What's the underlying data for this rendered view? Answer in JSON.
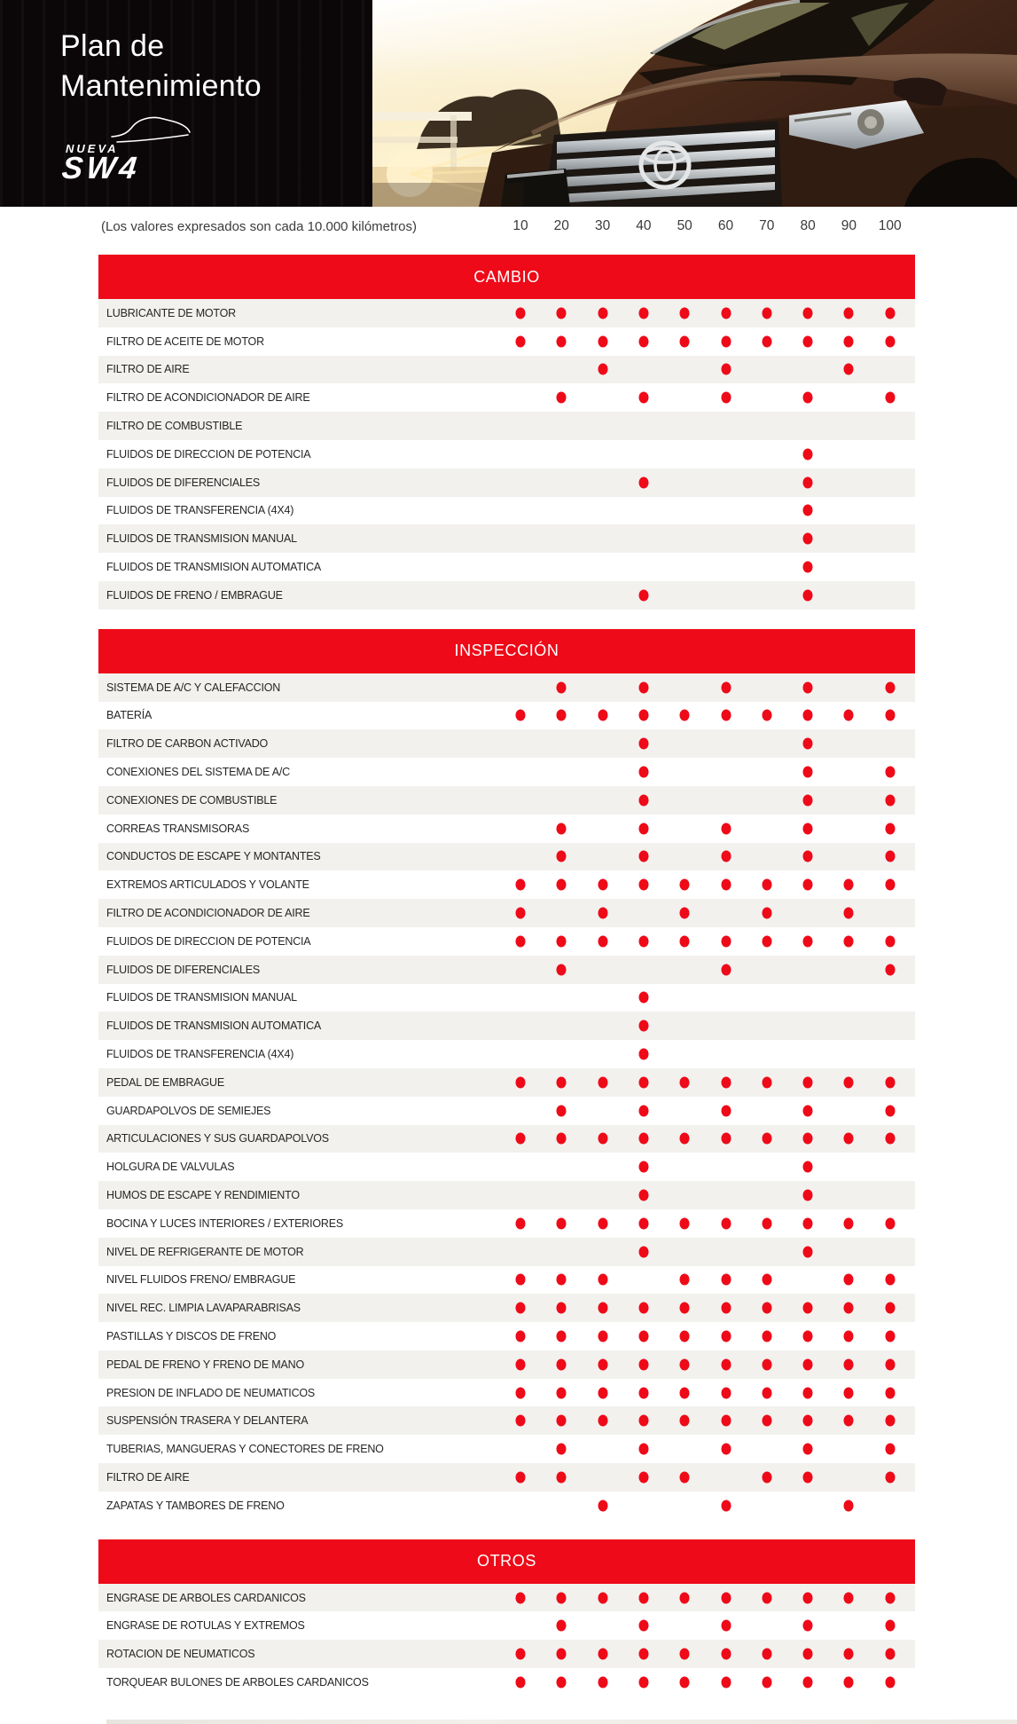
{
  "header": {
    "title_line1": "Plan de",
    "title_line2": "Mantenimiento",
    "logo_top": "NUEVA",
    "logo_main": "SW4"
  },
  "table": {
    "note": "(Los valores expresados son cada 10.000 kilómetros)",
    "columns": [
      "10",
      "20",
      "30",
      "40",
      "50",
      "60",
      "70",
      "80",
      "90",
      "100"
    ],
    "sections": [
      {
        "title": "CAMBIO",
        "rows": [
          {
            "label": "LUBRICANTE DE MOTOR",
            "marks": [
              1,
              1,
              1,
              1,
              1,
              1,
              1,
              1,
              1,
              1
            ]
          },
          {
            "label": "FILTRO DE ACEITE DE MOTOR",
            "marks": [
              1,
              1,
              1,
              1,
              1,
              1,
              1,
              1,
              1,
              1
            ]
          },
          {
            "label": "FILTRO DE AIRE",
            "marks": [
              0,
              0,
              1,
              0,
              0,
              1,
              0,
              0,
              1,
              0
            ]
          },
          {
            "label": "FILTRO DE ACONDICIONADOR DE AIRE",
            "marks": [
              0,
              1,
              0,
              1,
              0,
              1,
              0,
              1,
              0,
              1
            ]
          },
          {
            "label": "FILTRO DE COMBUSTIBLE",
            "marks": [
              0,
              0,
              0,
              0,
              0,
              0,
              0,
              0,
              0,
              0
            ]
          },
          {
            "label": "FLUIDOS DE DIRECCION DE POTENCIA",
            "marks": [
              0,
              0,
              0,
              0,
              0,
              0,
              0,
              1,
              0,
              0
            ]
          },
          {
            "label": "FLUIDOS DE DIFERENCIALES",
            "marks": [
              0,
              0,
              0,
              1,
              0,
              0,
              0,
              1,
              0,
              0
            ]
          },
          {
            "label": "FLUIDOS DE TRANSFERENCIA (4X4)",
            "marks": [
              0,
              0,
              0,
              0,
              0,
              0,
              0,
              1,
              0,
              0
            ]
          },
          {
            "label": "FLUIDOS DE TRANSMISION MANUAL",
            "marks": [
              0,
              0,
              0,
              0,
              0,
              0,
              0,
              1,
              0,
              0
            ]
          },
          {
            "label": "FLUIDOS DE TRANSMISION AUTOMATICA",
            "marks": [
              0,
              0,
              0,
              0,
              0,
              0,
              0,
              1,
              0,
              0
            ]
          },
          {
            "label": "FLUIDOS DE FRENO / EMBRAGUE",
            "marks": [
              0,
              0,
              0,
              1,
              0,
              0,
              0,
              1,
              0,
              0
            ]
          }
        ]
      },
      {
        "title": "INSPECCIÓN",
        "rows": [
          {
            "label": "SISTEMA DE A/C Y CALEFACCION",
            "marks": [
              0,
              1,
              0,
              1,
              0,
              1,
              0,
              1,
              0,
              1
            ]
          },
          {
            "label": "BATERÍA",
            "marks": [
              1,
              1,
              1,
              1,
              1,
              1,
              1,
              1,
              1,
              1
            ]
          },
          {
            "label": "FILTRO DE CARBON ACTIVADO",
            "marks": [
              0,
              0,
              0,
              1,
              0,
              0,
              0,
              1,
              0,
              0
            ]
          },
          {
            "label": "CONEXIONES DEL SISTEMA DE A/C",
            "marks": [
              0,
              0,
              0,
              1,
              0,
              0,
              0,
              1,
              0,
              1
            ]
          },
          {
            "label": "CONEXIONES DE COMBUSTIBLE",
            "marks": [
              0,
              0,
              0,
              1,
              0,
              0,
              0,
              1,
              0,
              1
            ]
          },
          {
            "label": "CORREAS TRANSMISORAS",
            "marks": [
              0,
              1,
              0,
              1,
              0,
              1,
              0,
              1,
              0,
              1
            ]
          },
          {
            "label": "CONDUCTOS DE ESCAPE Y MONTANTES",
            "marks": [
              0,
              1,
              0,
              1,
              0,
              1,
              0,
              1,
              0,
              1
            ]
          },
          {
            "label": "EXTREMOS ARTICULADOS Y VOLANTE",
            "marks": [
              1,
              1,
              1,
              1,
              1,
              1,
              1,
              1,
              1,
              1
            ]
          },
          {
            "label": "FILTRO DE ACONDICIONADOR DE AIRE",
            "marks": [
              1,
              0,
              1,
              0,
              1,
              0,
              1,
              0,
              1,
              0
            ]
          },
          {
            "label": "FLUIDOS DE DIRECCION DE POTENCIA",
            "marks": [
              1,
              1,
              1,
              1,
              1,
              1,
              1,
              1,
              1,
              1
            ]
          },
          {
            "label": "FLUIDOS DE DIFERENCIALES",
            "marks": [
              0,
              1,
              0,
              0,
              0,
              1,
              0,
              0,
              0,
              1
            ]
          },
          {
            "label": "FLUIDOS DE TRANSMISION MANUAL",
            "marks": [
              0,
              0,
              0,
              1,
              0,
              0,
              0,
              0,
              0,
              0
            ]
          },
          {
            "label": "FLUIDOS DE TRANSMISION AUTOMATICA",
            "marks": [
              0,
              0,
              0,
              1,
              0,
              0,
              0,
              0,
              0,
              0
            ]
          },
          {
            "label": "FLUIDOS DE TRANSFERENCIA (4X4)",
            "marks": [
              0,
              0,
              0,
              1,
              0,
              0,
              0,
              0,
              0,
              0
            ]
          },
          {
            "label": "PEDAL DE EMBRAGUE",
            "marks": [
              1,
              1,
              1,
              1,
              1,
              1,
              1,
              1,
              1,
              1
            ]
          },
          {
            "label": "GUARDAPOLVOS DE SEMIEJES",
            "marks": [
              0,
              1,
              0,
              1,
              0,
              1,
              0,
              1,
              0,
              1
            ]
          },
          {
            "label": "ARTICULACIONES Y SUS GUARDAPOLVOS",
            "marks": [
              1,
              1,
              1,
              1,
              1,
              1,
              1,
              1,
              1,
              1
            ]
          },
          {
            "label": "HOLGURA DE VALVULAS",
            "marks": [
              0,
              0,
              0,
              1,
              0,
              0,
              0,
              1,
              0,
              0
            ]
          },
          {
            "label": "HUMOS DE ESCAPE Y RENDIMIENTO",
            "marks": [
              0,
              0,
              0,
              1,
              0,
              0,
              0,
              1,
              0,
              0
            ]
          },
          {
            "label": "BOCINA Y LUCES INTERIORES / EXTERIORES",
            "marks": [
              1,
              1,
              1,
              1,
              1,
              1,
              1,
              1,
              1,
              1
            ]
          },
          {
            "label": "NIVEL DE REFRIGERANTE DE MOTOR",
            "marks": [
              0,
              0,
              0,
              1,
              0,
              0,
              0,
              1,
              0,
              0
            ]
          },
          {
            "label": "NIVEL FLUIDOS FRENO/ EMBRAGUE",
            "marks": [
              1,
              1,
              1,
              0,
              1,
              1,
              1,
              0,
              1,
              1
            ]
          },
          {
            "label": "NIVEL REC. LIMPIA LAVAPARABRISAS",
            "marks": [
              1,
              1,
              1,
              1,
              1,
              1,
              1,
              1,
              1,
              1
            ]
          },
          {
            "label": "PASTILLAS Y DISCOS DE FRENO",
            "marks": [
              1,
              1,
              1,
              1,
              1,
              1,
              1,
              1,
              1,
              1
            ]
          },
          {
            "label": "PEDAL DE FRENO Y FRENO DE MANO",
            "marks": [
              1,
              1,
              1,
              1,
              1,
              1,
              1,
              1,
              1,
              1
            ]
          },
          {
            "label": "PRESION DE INFLADO DE NEUMATICOS",
            "marks": [
              1,
              1,
              1,
              1,
              1,
              1,
              1,
              1,
              1,
              1
            ]
          },
          {
            "label": "SUSPENSIÓN TRASERA Y DELANTERA",
            "marks": [
              1,
              1,
              1,
              1,
              1,
              1,
              1,
              1,
              1,
              1
            ]
          },
          {
            "label": "TUBERIAS, MANGUERAS Y CONECTORES DE FRENO",
            "marks": [
              0,
              1,
              0,
              1,
              0,
              1,
              0,
              1,
              0,
              1
            ]
          },
          {
            "label": "FILTRO DE AIRE",
            "marks": [
              1,
              1,
              0,
              1,
              1,
              0,
              1,
              1,
              0,
              1
            ]
          },
          {
            "label": "ZAPATAS Y TAMBORES DE FRENO",
            "marks": [
              0,
              0,
              1,
              0,
              0,
              1,
              0,
              0,
              1,
              0
            ]
          }
        ]
      },
      {
        "title": "OTROS",
        "rows": [
          {
            "label": "ENGRASE DE ARBOLES CARDANICOS",
            "marks": [
              1,
              1,
              1,
              1,
              1,
              1,
              1,
              1,
              1,
              1
            ]
          },
          {
            "label": "ENGRASE DE ROTULAS Y EXTREMOS",
            "marks": [
              0,
              1,
              0,
              1,
              0,
              1,
              0,
              1,
              0,
              1
            ]
          },
          {
            "label": "ROTACION DE NEUMATICOS",
            "marks": [
              1,
              1,
              1,
              1,
              1,
              1,
              1,
              1,
              1,
              1
            ]
          },
          {
            "label": "TORQUEAR BULONES DE ARBOLES CARDANICOS",
            "marks": [
              1,
              1,
              1,
              1,
              1,
              1,
              1,
              1,
              1,
              1
            ]
          }
        ]
      }
    ]
  },
  "colors": {
    "accent_red": "#ee0a18",
    "row_alt": "#f2f1ee",
    "header_bg": "#0b0708"
  }
}
